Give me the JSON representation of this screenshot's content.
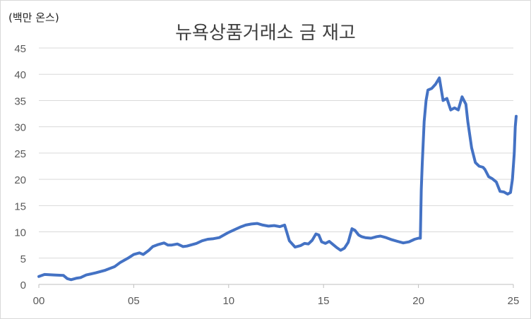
{
  "chart_data": {
    "type": "line",
    "title": "뉴욕상품거래소 금 재고",
    "unit_label": "(백만 온스)",
    "ylim": [
      0,
      45
    ],
    "y_ticks": [
      0,
      5,
      10,
      15,
      20,
      25,
      30,
      35,
      40,
      45
    ],
    "xlim": [
      0,
      25
    ],
    "x_ticks": [
      {
        "value": 0,
        "label": "00"
      },
      {
        "value": 5,
        "label": "05"
      },
      {
        "value": 10,
        "label": "10"
      },
      {
        "value": 15,
        "label": "15"
      },
      {
        "value": 20,
        "label": "20"
      },
      {
        "value": 25,
        "label": "25"
      }
    ],
    "grid": true,
    "line_color": "#4472c4",
    "series": [
      {
        "x": [
          0.0,
          0.3,
          0.8,
          1.3,
          1.5,
          1.7,
          2.0,
          2.2,
          2.5,
          3.0,
          3.5,
          4.0,
          4.3,
          4.7,
          5.0,
          5.3,
          5.5,
          5.8,
          6.0,
          6.3,
          6.6,
          6.8,
          7.0,
          7.3,
          7.6,
          7.8,
          8.0,
          8.3,
          8.6,
          8.9,
          9.2,
          9.5,
          9.8,
          10.0,
          10.3,
          10.6,
          10.9,
          11.2,
          11.5,
          11.8,
          12.1,
          12.4,
          12.7,
          12.95,
          13.2,
          13.5,
          13.8,
          14.0,
          14.2,
          14.4,
          14.6,
          14.75,
          14.9,
          15.1,
          15.3,
          15.5,
          15.7,
          15.9,
          16.1,
          16.3,
          16.5,
          16.65,
          16.85,
          17.0,
          17.2,
          17.5,
          17.8,
          18.0,
          18.3,
          18.6,
          18.9,
          19.2,
          19.5,
          19.8,
          20.0,
          20.1,
          20.15,
          20.2,
          20.3,
          20.4,
          20.5,
          20.7,
          20.9,
          21.1,
          21.3,
          21.5,
          21.7,
          21.9,
          22.1,
          22.3,
          22.4,
          22.5,
          22.6,
          22.8,
          23.0,
          23.2,
          23.4,
          23.5,
          23.7,
          23.9,
          24.1,
          24.3,
          24.5,
          24.7,
          24.85,
          24.95,
          25.05,
          25.1,
          25.15
        ],
        "y": [
          1.5,
          1.9,
          1.8,
          1.7,
          1.1,
          0.9,
          1.2,
          1.3,
          1.8,
          2.2,
          2.7,
          3.4,
          4.2,
          5.0,
          5.7,
          6.0,
          5.7,
          6.5,
          7.2,
          7.6,
          7.9,
          7.5,
          7.5,
          7.7,
          7.2,
          7.3,
          7.5,
          7.8,
          8.3,
          8.6,
          8.7,
          8.9,
          9.5,
          9.9,
          10.4,
          10.9,
          11.3,
          11.5,
          11.6,
          11.3,
          11.1,
          11.2,
          11.0,
          11.3,
          8.3,
          7.1,
          7.4,
          7.8,
          7.7,
          8.4,
          9.6,
          9.4,
          8.1,
          7.8,
          8.2,
          7.6,
          7.0,
          6.5,
          6.9,
          8.0,
          10.6,
          10.3,
          9.4,
          9.1,
          8.9,
          8.8,
          9.1,
          9.2,
          8.9,
          8.5,
          8.2,
          7.9,
          8.1,
          8.6,
          8.8,
          8.8,
          18.0,
          23.0,
          31.0,
          35.0,
          37.0,
          37.3,
          38.1,
          39.3,
          35.0,
          35.4,
          33.2,
          33.6,
          33.2,
          35.7,
          35.0,
          34.3,
          31.0,
          26.0,
          23.2,
          22.5,
          22.3,
          21.9,
          20.5,
          20.1,
          19.5,
          17.7,
          17.6,
          17.2,
          17.5,
          20.0,
          25.0,
          30.0,
          32.0
        ]
      }
    ]
  }
}
